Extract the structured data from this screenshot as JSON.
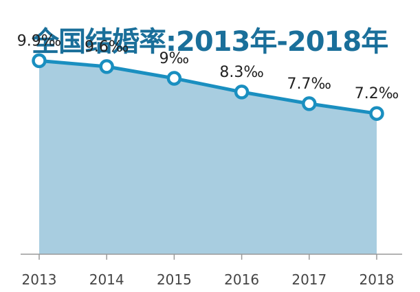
{
  "title": "全国结婚率:2013年-2018年",
  "chart_data": {
    "type": "area",
    "title": "全国结婚率:2013年-2018年",
    "categories": [
      "2013",
      "2014",
      "2015",
      "2016",
      "2017",
      "2018"
    ],
    "values": [
      9.9,
      9.6,
      9.0,
      8.3,
      7.7,
      7.2
    ],
    "data_labels": [
      "9.9‰",
      "9.6‰",
      "9‰",
      "8.3‰",
      "7.7‰",
      "7.2‰"
    ],
    "xlabel": "",
    "ylabel": "",
    "ylim": [
      0,
      11.6
    ],
    "grid": false,
    "legend": "none"
  },
  "colors": {
    "title": "#1a6f9a",
    "line": "#1a8fc0",
    "fill": "#a8cde0",
    "marker_fill": "#ffffff",
    "axis": "#999999"
  }
}
